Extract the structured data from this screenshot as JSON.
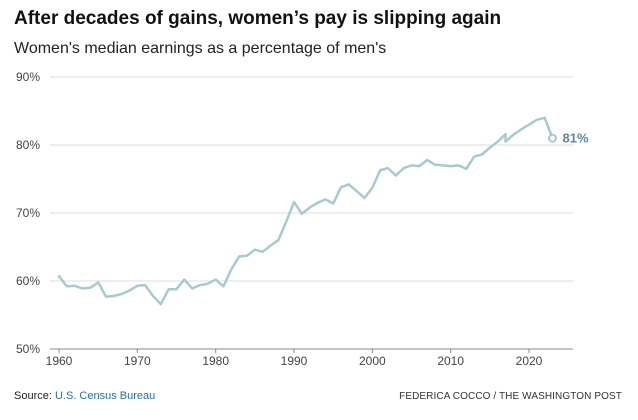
{
  "header": {
    "title": "After decades of gains, women’s pay is slipping again",
    "subtitle": "Women's median earnings as a percentage of men's"
  },
  "footer": {
    "source_prefix": "Source: ",
    "source_link": "U.S. Census Bureau",
    "credit": "FEDERICA COCCO / THE WASHINGTON POST"
  },
  "colors": {
    "line": "#a9c9d1",
    "end_label": "#5a8a98",
    "grid": "#dddddd",
    "link": "#2a6f9e"
  },
  "chart_data": {
    "type": "line",
    "title": "After decades of gains, women’s pay is slipping again",
    "subtitle": "Women's median earnings as a percentage of men's",
    "xlabel": "",
    "ylabel": "",
    "xlim": [
      1960,
      2023
    ],
    "ylim": [
      50,
      90
    ],
    "x_ticks": [
      1960,
      1970,
      1980,
      1990,
      2000,
      2010,
      2020
    ],
    "x_tick_labels": [
      "1960",
      "1970",
      "1980",
      "1990",
      "2000",
      "2010",
      "2020"
    ],
    "y_ticks": [
      50,
      60,
      70,
      80,
      90
    ],
    "y_tick_labels": [
      "50%",
      "60%",
      "70%",
      "80%",
      "90%"
    ],
    "grid": true,
    "series": [
      {
        "name": "Women's median earnings as a percentage of men's",
        "x": [
          1960,
          1961,
          1962,
          1963,
          1964,
          1965,
          1966,
          1967,
          1968,
          1969,
          1970,
          1971,
          1972,
          1973,
          1974,
          1975,
          1976,
          1977,
          1978,
          1979,
          1980,
          1981,
          1982,
          1983,
          1984,
          1985,
          1986,
          1987,
          1988,
          1989,
          1990,
          1991,
          1992,
          1993,
          1994,
          1995,
          1996,
          1997,
          1998,
          1999,
          2000,
          2001,
          2002,
          2003,
          2004,
          2005,
          2006,
          2007,
          2008,
          2009,
          2010,
          2011,
          2012,
          2013,
          2014,
          2015,
          2016,
          2017,
          2017,
          2018,
          2019,
          2020,
          2021,
          2022,
          2023
        ],
        "values": [
          60.7,
          59.2,
          59.3,
          58.9,
          59.0,
          59.8,
          57.7,
          57.8,
          58.1,
          58.6,
          59.3,
          59.4,
          57.8,
          56.6,
          58.8,
          58.8,
          60.2,
          58.9,
          59.4,
          59.6,
          60.2,
          59.2,
          61.7,
          63.6,
          63.7,
          64.6,
          64.3,
          65.2,
          66.0,
          68.7,
          71.6,
          69.9,
          70.8,
          71.5,
          72.0,
          71.4,
          73.8,
          74.2,
          73.2,
          72.2,
          73.7,
          76.3,
          76.6,
          75.5,
          76.6,
          77.0,
          76.9,
          77.8,
          77.1,
          77.0,
          76.9,
          77.0,
          76.5,
          78.3,
          78.6,
          79.6,
          80.5,
          81.6,
          80.5,
          81.5,
          82.3,
          83.0,
          83.7,
          84.0,
          81.0
        ]
      }
    ],
    "end_marker": "hollow-circle",
    "end_label": "81%"
  }
}
